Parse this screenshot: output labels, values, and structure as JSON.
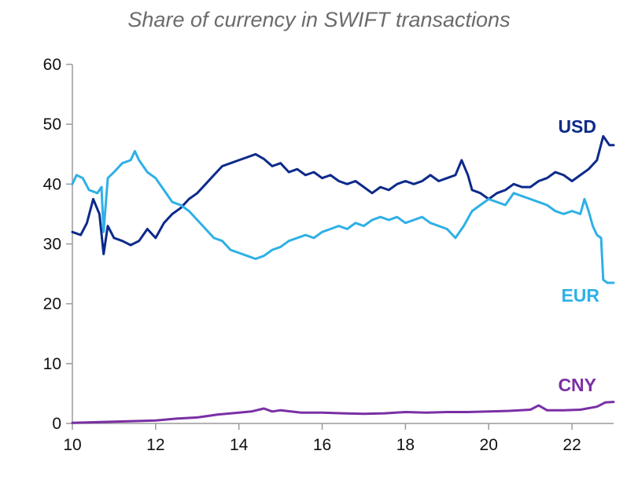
{
  "chart_data": {
    "type": "line",
    "title": "Share of currency in SWIFT transactions",
    "xlabel": "",
    "ylabel": "",
    "xlim": [
      10,
      23
    ],
    "ylim": [
      0,
      60
    ],
    "x_ticks": [
      10,
      12,
      14,
      16,
      18,
      20,
      22
    ],
    "y_ticks": [
      0,
      10,
      20,
      30,
      40,
      50,
      60
    ],
    "grid": false,
    "legend": "inline labels at line ends",
    "series": [
      {
        "name": "USD",
        "color": "#0d2a8a",
        "points": [
          [
            10.0,
            32.0
          ],
          [
            10.2,
            31.5
          ],
          [
            10.35,
            33.5
          ],
          [
            10.5,
            37.5
          ],
          [
            10.65,
            35.0
          ],
          [
            10.75,
            28.3
          ],
          [
            10.85,
            33.0
          ],
          [
            11.0,
            31.0
          ],
          [
            11.2,
            30.5
          ],
          [
            11.4,
            29.8
          ],
          [
            11.6,
            30.5
          ],
          [
            11.8,
            32.5
          ],
          [
            12.0,
            31.0
          ],
          [
            12.2,
            33.5
          ],
          [
            12.4,
            35.0
          ],
          [
            12.6,
            36.0
          ],
          [
            12.8,
            37.5
          ],
          [
            13.0,
            38.5
          ],
          [
            13.2,
            40.0
          ],
          [
            13.4,
            41.5
          ],
          [
            13.6,
            43.0
          ],
          [
            13.8,
            43.5
          ],
          [
            14.0,
            44.0
          ],
          [
            14.2,
            44.5
          ],
          [
            14.4,
            45.0
          ],
          [
            14.6,
            44.2
          ],
          [
            14.8,
            43.0
          ],
          [
            15.0,
            43.5
          ],
          [
            15.2,
            42.0
          ],
          [
            15.4,
            42.5
          ],
          [
            15.6,
            41.5
          ],
          [
            15.8,
            42.0
          ],
          [
            16.0,
            41.0
          ],
          [
            16.2,
            41.5
          ],
          [
            16.4,
            40.5
          ],
          [
            16.6,
            40.0
          ],
          [
            16.8,
            40.5
          ],
          [
            17.0,
            39.5
          ],
          [
            17.2,
            38.5
          ],
          [
            17.4,
            39.5
          ],
          [
            17.6,
            39.0
          ],
          [
            17.8,
            40.0
          ],
          [
            18.0,
            40.5
          ],
          [
            18.2,
            40.0
          ],
          [
            18.4,
            40.5
          ],
          [
            18.6,
            41.5
          ],
          [
            18.8,
            40.5
          ],
          [
            19.0,
            41.0
          ],
          [
            19.2,
            41.5
          ],
          [
            19.35,
            44.0
          ],
          [
            19.5,
            41.5
          ],
          [
            19.6,
            39.0
          ],
          [
            19.8,
            38.5
          ],
          [
            20.0,
            37.5
          ],
          [
            20.2,
            38.5
          ],
          [
            20.4,
            39.0
          ],
          [
            20.6,
            40.0
          ],
          [
            20.8,
            39.5
          ],
          [
            21.0,
            39.5
          ],
          [
            21.2,
            40.5
          ],
          [
            21.4,
            41.0
          ],
          [
            21.6,
            42.0
          ],
          [
            21.8,
            41.5
          ],
          [
            22.0,
            40.5
          ],
          [
            22.2,
            41.5
          ],
          [
            22.4,
            42.5
          ],
          [
            22.6,
            44.0
          ],
          [
            22.75,
            48.0
          ],
          [
            22.9,
            46.5
          ],
          [
            23.0,
            46.5
          ]
        ]
      },
      {
        "name": "EUR",
        "color": "#2fb0e6",
        "points": [
          [
            10.0,
            40.0
          ],
          [
            10.1,
            41.5
          ],
          [
            10.25,
            41.0
          ],
          [
            10.4,
            39.0
          ],
          [
            10.6,
            38.5
          ],
          [
            10.7,
            39.5
          ],
          [
            10.75,
            32.0
          ],
          [
            10.85,
            41.0
          ],
          [
            11.0,
            42.0
          ],
          [
            11.2,
            43.5
          ],
          [
            11.4,
            44.0
          ],
          [
            11.5,
            45.5
          ],
          [
            11.6,
            44.0
          ],
          [
            11.8,
            42.0
          ],
          [
            12.0,
            41.0
          ],
          [
            12.2,
            39.0
          ],
          [
            12.4,
            37.0
          ],
          [
            12.6,
            36.5
          ],
          [
            12.8,
            35.5
          ],
          [
            13.0,
            34.0
          ],
          [
            13.2,
            32.5
          ],
          [
            13.4,
            31.0
          ],
          [
            13.6,
            30.5
          ],
          [
            13.8,
            29.0
          ],
          [
            14.0,
            28.5
          ],
          [
            14.2,
            28.0
          ],
          [
            14.4,
            27.5
          ],
          [
            14.6,
            28.0
          ],
          [
            14.8,
            29.0
          ],
          [
            15.0,
            29.5
          ],
          [
            15.2,
            30.5
          ],
          [
            15.4,
            31.0
          ],
          [
            15.6,
            31.5
          ],
          [
            15.8,
            31.0
          ],
          [
            16.0,
            32.0
          ],
          [
            16.2,
            32.5
          ],
          [
            16.4,
            33.0
          ],
          [
            16.6,
            32.5
          ],
          [
            16.8,
            33.5
          ],
          [
            17.0,
            33.0
          ],
          [
            17.2,
            34.0
          ],
          [
            17.4,
            34.5
          ],
          [
            17.6,
            34.0
          ],
          [
            17.8,
            34.5
          ],
          [
            18.0,
            33.5
          ],
          [
            18.2,
            34.0
          ],
          [
            18.4,
            34.5
          ],
          [
            18.6,
            33.5
          ],
          [
            18.8,
            33.0
          ],
          [
            19.0,
            32.5
          ],
          [
            19.2,
            31.0
          ],
          [
            19.4,
            33.0
          ],
          [
            19.6,
            35.5
          ],
          [
            19.8,
            36.5
          ],
          [
            20.0,
            37.5
          ],
          [
            20.2,
            37.0
          ],
          [
            20.4,
            36.5
          ],
          [
            20.6,
            38.5
          ],
          [
            20.8,
            38.0
          ],
          [
            21.0,
            37.5
          ],
          [
            21.2,
            37.0
          ],
          [
            21.4,
            36.5
          ],
          [
            21.6,
            35.5
          ],
          [
            21.8,
            35.0
          ],
          [
            22.0,
            35.5
          ],
          [
            22.2,
            35.0
          ],
          [
            22.3,
            37.5
          ],
          [
            22.4,
            35.5
          ],
          [
            22.5,
            33.0
          ],
          [
            22.6,
            31.5
          ],
          [
            22.7,
            31.0
          ],
          [
            22.75,
            24.0
          ],
          [
            22.85,
            23.5
          ],
          [
            23.0,
            23.5
          ]
        ]
      },
      {
        "name": "CNY",
        "color": "#7a2fa5",
        "points": [
          [
            10.0,
            0.1
          ],
          [
            10.5,
            0.2
          ],
          [
            11.0,
            0.3
          ],
          [
            11.5,
            0.4
          ],
          [
            12.0,
            0.5
          ],
          [
            12.5,
            0.8
          ],
          [
            13.0,
            1.0
          ],
          [
            13.5,
            1.5
          ],
          [
            14.0,
            1.8
          ],
          [
            14.3,
            2.0
          ],
          [
            14.6,
            2.5
          ],
          [
            14.8,
            2.0
          ],
          [
            15.0,
            2.2
          ],
          [
            15.5,
            1.8
          ],
          [
            16.0,
            1.8
          ],
          [
            16.5,
            1.7
          ],
          [
            17.0,
            1.6
          ],
          [
            17.5,
            1.7
          ],
          [
            18.0,
            1.9
          ],
          [
            18.5,
            1.8
          ],
          [
            19.0,
            1.9
          ],
          [
            19.5,
            1.9
          ],
          [
            20.0,
            2.0
          ],
          [
            20.5,
            2.1
          ],
          [
            21.0,
            2.3
          ],
          [
            21.2,
            3.0
          ],
          [
            21.4,
            2.2
          ],
          [
            21.8,
            2.2
          ],
          [
            22.2,
            2.3
          ],
          [
            22.6,
            2.8
          ],
          [
            22.8,
            3.5
          ],
          [
            23.0,
            3.6
          ]
        ]
      }
    ]
  }
}
